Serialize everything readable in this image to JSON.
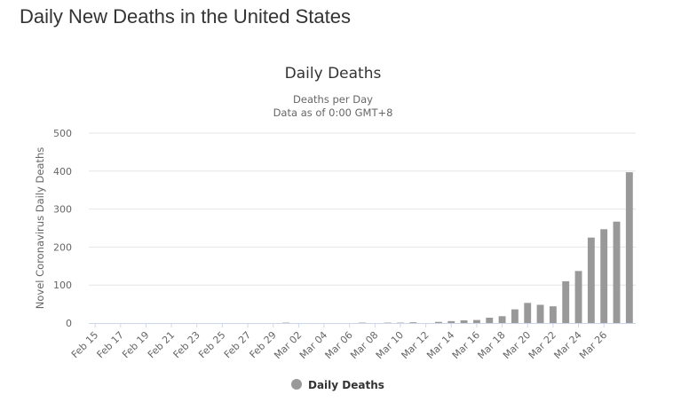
{
  "page": {
    "title": "Daily New Deaths in the United States"
  },
  "chart_data": {
    "type": "bar",
    "title": "Daily Deaths",
    "subtitle_lines": [
      "Deaths per Day",
      "Data as of 0:00 GMT+8"
    ],
    "ylabel": "Novel Coronavirus Daily Deaths",
    "xlabel": "",
    "ylim": [
      0,
      500
    ],
    "yticks": [
      0,
      100,
      200,
      300,
      400,
      500
    ],
    "grid": true,
    "legend_position": "bottom-center",
    "series": [
      {
        "name": "Daily Deaths",
        "color": "#999999",
        "values": [
          0,
          0,
          0,
          0,
          0,
          0,
          0,
          0,
          0,
          0,
          0,
          0,
          0,
          0,
          0,
          1,
          0,
          0,
          0,
          0,
          0,
          1,
          0,
          1,
          1,
          2,
          0,
          3,
          5,
          7,
          8,
          14,
          18,
          36,
          53,
          48,
          44,
          110,
          137,
          225,
          247,
          267,
          397
        ]
      }
    ],
    "categories": [
      "Feb 15",
      "Feb 16",
      "Feb 17",
      "Feb 18",
      "Feb 19",
      "Feb 20",
      "Feb 21",
      "Feb 22",
      "Feb 23",
      "Feb 24",
      "Feb 25",
      "Feb 26",
      "Feb 27",
      "Feb 28",
      "Feb 29",
      "Mar 01",
      "Mar 02",
      "Mar 03",
      "Mar 04",
      "Mar 05",
      "Mar 06",
      "Mar 07",
      "Mar 08",
      "Mar 09",
      "Mar 10",
      "Mar 11",
      "Mar 12",
      "Mar 13",
      "Mar 14",
      "Mar 15",
      "Mar 16",
      "Mar 17",
      "Mar 18",
      "Mar 19",
      "Mar 20",
      "Mar 21",
      "Mar 22",
      "Mar 23",
      "Mar 24",
      "Mar 25",
      "Mar 26",
      "Mar 27",
      "Mar 28"
    ],
    "tick_labels": [
      "Feb 15",
      "Feb 17",
      "Feb 19",
      "Feb 21",
      "Feb 23",
      "Feb 25",
      "Feb 27",
      "Feb 29",
      "Mar 02",
      "Mar 04",
      "Mar 06",
      "Mar 08",
      "Mar 10",
      "Mar 12",
      "Mar 14",
      "Mar 16",
      "Mar 18",
      "Mar 20",
      "Mar 22",
      "Mar 24",
      "Mar 26"
    ]
  }
}
